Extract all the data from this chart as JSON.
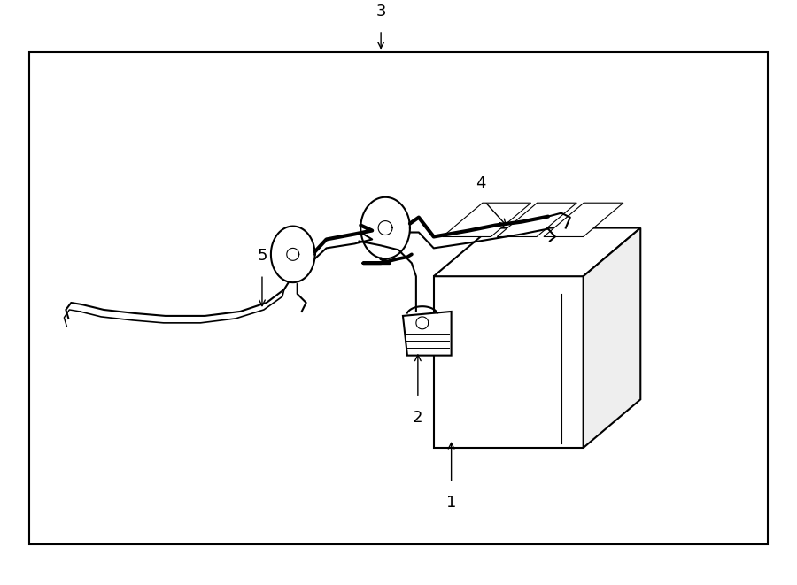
{
  "background_color": "#ffffff",
  "border_color": "#000000",
  "line_color": "#000000",
  "label_color": "#000000",
  "font_size": 13
}
